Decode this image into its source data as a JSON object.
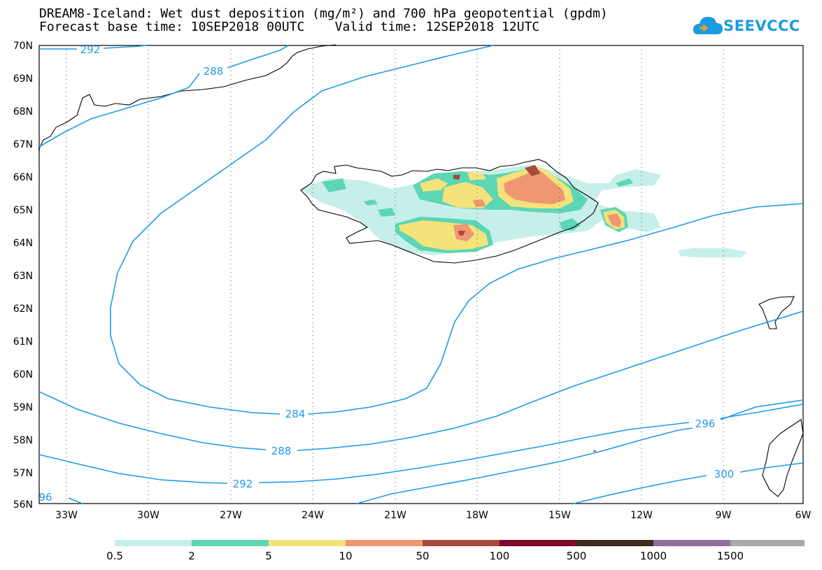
{
  "title_line1": "DREAM8-Iceland: Wet dust deposition (mg/m²) and 700 hPa geopotential (gpdm)",
  "title_line2": "Forecast base time: 10SEP2018 00UTC    Valid time: 12SEP2018 12UTC",
  "logo_text": "SEEVCCC",
  "map": {
    "lat_labels": [
      "70N",
      "69N",
      "68N",
      "67N",
      "66N",
      "65N",
      "64N",
      "63N",
      "62N",
      "61N",
      "60N",
      "59N",
      "58N",
      "57N",
      "56N"
    ],
    "lon_labels": [
      "33W",
      "30W",
      "27W",
      "24W",
      "21W",
      "18W",
      "15W",
      "12W",
      "9W",
      "6W"
    ],
    "contour_labels": [
      "292",
      "288",
      "284",
      "288",
      "292",
      "96",
      "296",
      "300"
    ],
    "contour_color": "#1e9be8",
    "coast_color": "#000000"
  },
  "colorbar": {
    "labels": [
      "0.5",
      "2",
      "5",
      "10",
      "50",
      "100",
      "500",
      "1000",
      "1500"
    ],
    "colors": [
      "#c7efe9",
      "#5cd6b4",
      "#f4e27a",
      "#ef9772",
      "#a64b3c",
      "#7a0b2a",
      "#3d2b1f",
      "#8f6f9e",
      "#a9a9a9"
    ]
  }
}
